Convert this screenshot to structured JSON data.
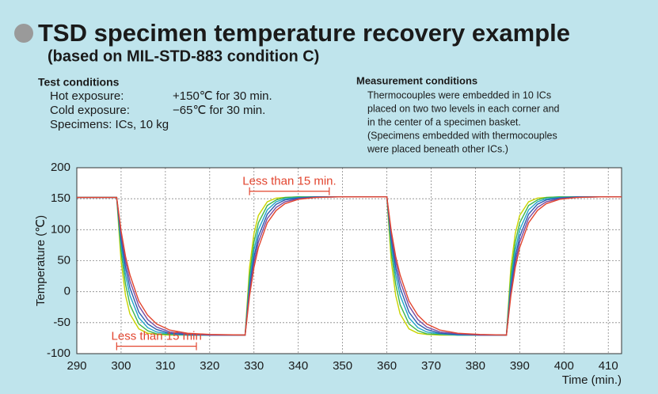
{
  "header": {
    "title": "TSD specimen temperature recovery example",
    "subtitle": "(based on MIL-STD-883 condition C)"
  },
  "test_conditions": {
    "heading": "Test conditions",
    "rows": [
      [
        "Hot exposure:",
        "+150℃ for 30 min."
      ],
      [
        "Cold exposure:",
        "−65℃ for 30 min."
      ],
      [
        "Specimens: ICs, 10 kg"
      ]
    ]
  },
  "measurement_conditions": {
    "heading": "Measurement conditions",
    "lines": [
      "Thermocouples were embedded in 10 ICs",
      "placed on two two levels in each corner and",
      "in the center of a specimen basket.",
      "(Specimens  embedded with thermocouples",
      "were placed beneath other ICs.)"
    ]
  },
  "chart_data": {
    "type": "line",
    "x_label": "Time (min.)",
    "y_label": "Temperature (℃)",
    "x": [
      290,
      299,
      300,
      301,
      302,
      304,
      306,
      308,
      311,
      315,
      320,
      328,
      329,
      330,
      331,
      333,
      335,
      337,
      340,
      344,
      349,
      359,
      360,
      361,
      362,
      363,
      365,
      367,
      369,
      372,
      376,
      381,
      387,
      388,
      389,
      390,
      392,
      394,
      396,
      399,
      403,
      408,
      413
    ],
    "series": [
      {
        "color": "#c8d400",
        "values": [
          152,
          152,
          49,
          -6,
          -36,
          -60,
          -67,
          -69,
          -70,
          -70,
          -70,
          -70,
          39,
          94,
          123,
          145,
          151,
          152,
          153,
          153,
          153,
          153,
          153,
          49,
          -6,
          -36,
          -60,
          -67,
          -69,
          -70,
          -70,
          -70,
          -70,
          39,
          94,
          123,
          145,
          151,
          152,
          153,
          153,
          153,
          153
        ]
      },
      {
        "color": "#3cb44b",
        "values": [
          152,
          152,
          65,
          12,
          -21,
          -52,
          -63,
          -68,
          -69,
          -70,
          -70,
          -70,
          25,
          80,
          111,
          139,
          148,
          152,
          153,
          153,
          153,
          153,
          153,
          65,
          12,
          -21,
          -52,
          -63,
          -68,
          -69,
          -70,
          -70,
          -70,
          25,
          80,
          111,
          139,
          148,
          152,
          153,
          153,
          153,
          153
        ]
      },
      {
        "color": "#1fa3c8",
        "values": [
          152,
          152,
          76,
          27,
          -6,
          -42,
          -58,
          -65,
          -68,
          -70,
          -70,
          -70,
          14,
          67,
          100,
          132,
          145,
          150,
          152,
          153,
          153,
          153,
          153,
          76,
          27,
          -6,
          -42,
          -58,
          -65,
          -68,
          -70,
          -70,
          -70,
          14,
          67,
          100,
          132,
          145,
          150,
          152,
          153,
          153,
          153
        ]
      },
      {
        "color": "#2a5db0",
        "values": [
          152,
          152,
          85,
          39,
          6,
          -33,
          -52,
          -61,
          -67,
          -69,
          -70,
          -70,
          6,
          56,
          89,
          125,
          141,
          148,
          151,
          153,
          153,
          153,
          153,
          85,
          39,
          6,
          -33,
          -52,
          -61,
          -67,
          -69,
          -70,
          -70,
          6,
          56,
          89,
          125,
          141,
          148,
          151,
          153,
          153,
          153
        ]
      },
      {
        "color": "#7a4aa0",
        "values": [
          152,
          152,
          92,
          49,
          17,
          -23,
          -45,
          -57,
          -65,
          -68,
          -70,
          -70,
          -1,
          47,
          80,
          118,
          136,
          145,
          150,
          152,
          153,
          153,
          153,
          92,
          49,
          17,
          -23,
          -45,
          -57,
          -65,
          -68,
          -70,
          -70,
          -1,
          47,
          80,
          118,
          136,
          145,
          150,
          152,
          153,
          153
        ]
      },
      {
        "color": "#e2452f",
        "values": [
          152,
          152,
          98,
          57,
          27,
          -15,
          -38,
          -52,
          -62,
          -67,
          -69,
          -70,
          -7,
          39,
          71,
          111,
          131,
          142,
          149,
          152,
          153,
          153,
          153,
          98,
          57,
          27,
          -15,
          -38,
          -52,
          -62,
          -67,
          -69,
          -70,
          -7,
          39,
          71,
          111,
          131,
          142,
          149,
          152,
          153,
          153
        ]
      }
    ],
    "xlim": [
      290,
      413
    ],
    "ylim": [
      -100,
      200
    ],
    "xticks": [
      290,
      300,
      310,
      320,
      330,
      340,
      350,
      360,
      370,
      380,
      390,
      400,
      410
    ],
    "yticks": [
      -100,
      -50,
      0,
      50,
      100,
      150,
      200
    ],
    "grid": true,
    "annotations": [
      {
        "text": "Less than 15 min.",
        "x": [
          329,
          347
        ],
        "y": 162,
        "color": "#e2452f"
      },
      {
        "text": "Less than 15 min",
        "x": [
          299,
          317
        ],
        "y": -88,
        "color": "#e2452f"
      }
    ]
  }
}
